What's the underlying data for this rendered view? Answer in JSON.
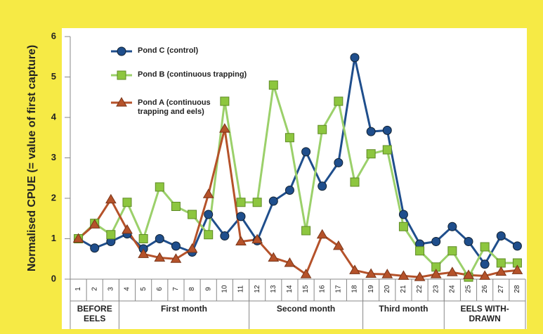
{
  "chart_data": {
    "type": "line",
    "y_label": "Normalised CPUE (= value of first capture)",
    "categories": [
      "1",
      "2",
      "3",
      "4",
      "5",
      "6",
      "7",
      "8",
      "9",
      "10",
      "11",
      "12",
      "13",
      "14",
      "15",
      "16",
      "17",
      "18",
      "19",
      "20",
      "21",
      "22",
      "23",
      "24",
      "25",
      "26",
      "27",
      "28"
    ],
    "groups": [
      "BEFORE EELS",
      "First month",
      "Second month",
      "Third month",
      "EELS WITH-DRAWN"
    ],
    "series": [
      {
        "name": "Pond C (control)",
        "color": "#1f4e8c",
        "marker": "circle",
        "values": [
          1.0,
          0.77,
          0.93,
          1.12,
          0.75,
          1.0,
          0.82,
          0.67,
          1.6,
          1.07,
          1.55,
          0.95,
          1.93,
          2.2,
          3.15,
          2.3,
          2.88,
          5.48,
          3.65,
          3.68,
          1.6,
          0.87,
          0.93,
          1.3,
          0.93,
          0.37,
          1.07,
          0.82
        ]
      },
      {
        "name": "Pond B (continuous trapping)",
        "color": "#9bd06a",
        "marker": "square",
        "values": [
          1.0,
          1.38,
          1.1,
          1.9,
          1.0,
          2.28,
          1.8,
          1.6,
          1.1,
          4.4,
          1.9,
          1.9,
          4.8,
          3.5,
          1.2,
          3.7,
          4.4,
          2.4,
          3.1,
          3.2,
          1.3,
          0.7,
          0.3,
          0.7,
          0.05,
          0.8,
          0.4,
          0.4
        ]
      },
      {
        "name": "Pond A (continuous trapping and eels)",
        "color": "#b5522a",
        "marker": "triangle",
        "values": [
          1.0,
          1.35,
          1.97,
          1.22,
          0.62,
          0.53,
          0.5,
          0.75,
          2.1,
          3.72,
          0.93,
          0.98,
          0.53,
          0.4,
          0.12,
          1.1,
          0.82,
          0.22,
          0.13,
          0.12,
          0.08,
          0.05,
          0.12,
          0.17,
          0.1,
          0.08,
          0.18,
          0.22
        ]
      }
    ],
    "ylim": [
      0,
      6
    ],
    "yticks": [
      0,
      1,
      2,
      3,
      4,
      5,
      6
    ]
  }
}
